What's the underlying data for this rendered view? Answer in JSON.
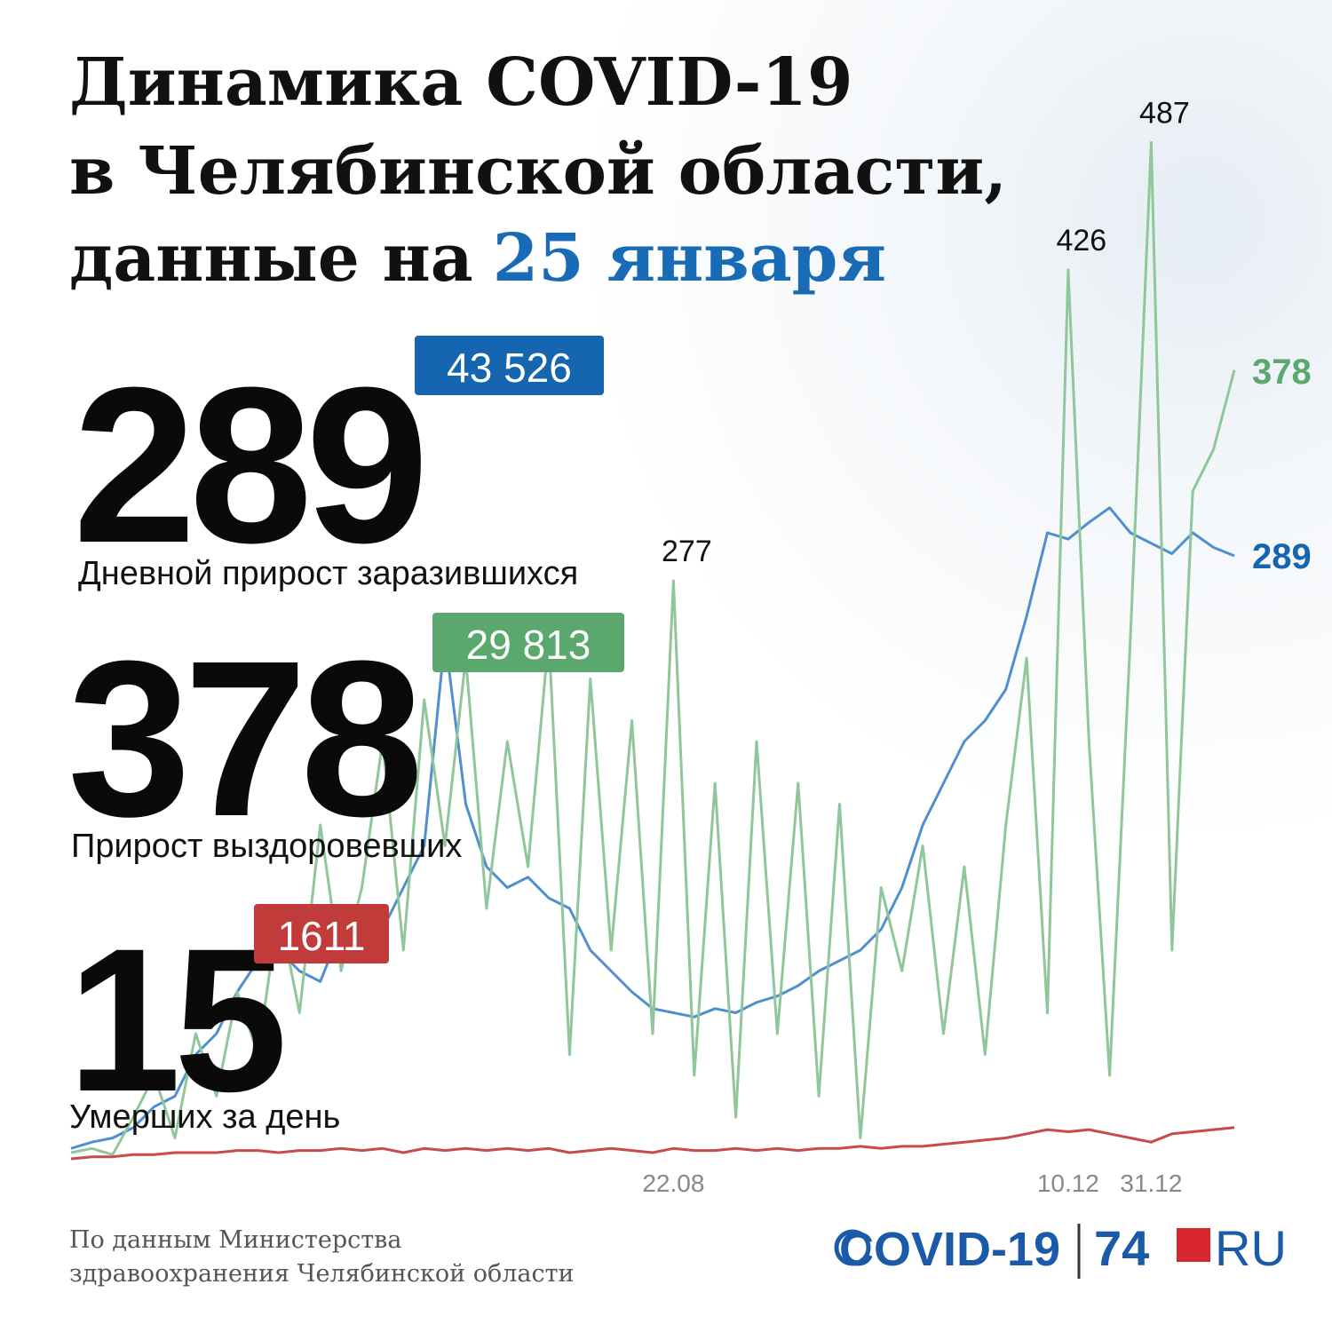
{
  "chart_data": {
    "type": "line",
    "title": [
      "Динамика COVID-19",
      "в Челябинской области,",
      "данные на"
    ],
    "title_date": "25 января",
    "title_date_color": "#1a6bb5",
    "categories": [
      null,
      null,
      null,
      null,
      null,
      null,
      null,
      null,
      null,
      null,
      null,
      null,
      null,
      null,
      null,
      null,
      null,
      null,
      null,
      null,
      null,
      null,
      null,
      null,
      null,
      null,
      null,
      null,
      null,
      "22.08",
      null,
      null,
      null,
      null,
      null,
      null,
      null,
      null,
      null,
      null,
      null,
      null,
      null,
      null,
      null,
      null,
      null,
      null,
      "10.12",
      null,
      null,
      null,
      "31.12",
      null,
      null,
      null,
      null
    ],
    "ylim": [
      0,
      500
    ],
    "series": [
      {
        "name": "Дневной прирост заразившихся",
        "color": "#4f8fcf",
        "badge_color": "#1565b0",
        "total": "43 526",
        "values": [
          5,
          8,
          10,
          15,
          25,
          30,
          50,
          60,
          80,
          95,
          100,
          90,
          85,
          110,
          95,
          110,
          130,
          150,
          250,
          170,
          140,
          130,
          135,
          125,
          120,
          100,
          90,
          80,
          72,
          70,
          68,
          72,
          70,
          75,
          78,
          83,
          90,
          95,
          100,
          110,
          130,
          160,
          180,
          200,
          210,
          225,
          260,
          300,
          297,
          305,
          312,
          300,
          295,
          290,
          300,
          293,
          289
        ]
      },
      {
        "name": "Прирост выздоровевших",
        "color": "#8fc79a",
        "badge_color": "#5aa86e",
        "total": "29 813",
        "values": [
          3,
          5,
          2,
          20,
          40,
          10,
          60,
          30,
          80,
          50,
          120,
          70,
          160,
          90,
          130,
          200,
          100,
          220,
          150,
          240,
          120,
          200,
          140,
          250,
          50,
          230,
          100,
          210,
          60,
          277,
          40,
          180,
          20,
          200,
          60,
          180,
          30,
          170,
          10,
          130,
          90,
          150,
          60,
          140,
          50,
          160,
          240,
          70,
          426,
          200,
          40,
          250,
          487,
          100,
          320,
          340,
          378
        ],
        "value_labels": [
          null,
          null,
          null,
          null,
          null,
          null,
          null,
          null,
          null,
          null,
          null,
          null,
          null,
          null,
          null,
          null,
          null,
          null,
          null,
          null,
          null,
          null,
          null,
          null,
          null,
          null,
          null,
          null,
          null,
          "277",
          null,
          null,
          null,
          null,
          null,
          null,
          null,
          null,
          null,
          null,
          null,
          null,
          null,
          null,
          null,
          null,
          null,
          null,
          "426",
          null,
          null,
          null,
          "487",
          null,
          null,
          null,
          null
        ]
      },
      {
        "name": "Умерших за день",
        "color": "#c84a4a",
        "badge_color": "#c23b3b",
        "total": "1611",
        "values": [
          0,
          1,
          1,
          2,
          2,
          3,
          3,
          3,
          4,
          4,
          3,
          4,
          4,
          5,
          4,
          5,
          3,
          5,
          4,
          5,
          4,
          5,
          4,
          5,
          3,
          4,
          5,
          4,
          3,
          5,
          4,
          4,
          5,
          4,
          5,
          4,
          5,
          5,
          6,
          5,
          6,
          6,
          7,
          8,
          9,
          10,
          12,
          14,
          13,
          14,
          12,
          10,
          8,
          12,
          13,
          14,
          15
        ]
      }
    ],
    "source": [
      "По данным Министерства",
      "здравоохранения Челябинской области"
    ],
    "logo": {
      "covid": "COVID-19",
      "number": "74",
      "domain": "RU"
    }
  }
}
